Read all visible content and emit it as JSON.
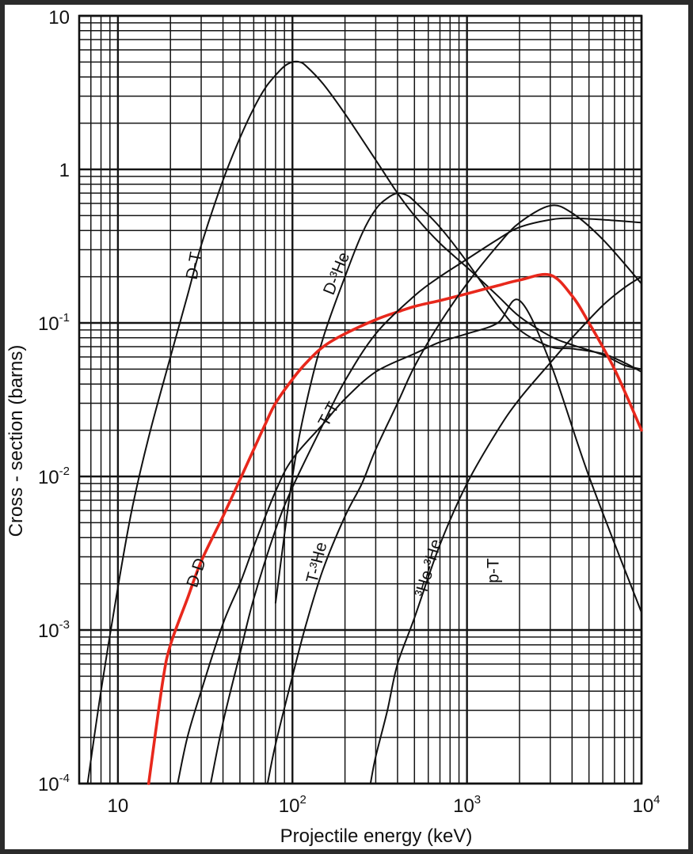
{
  "chart_data": {
    "type": "line",
    "title": "",
    "xlabel": "Projectile energy (keV)",
    "ylabel": "Cross - section (barns)",
    "x_scale": "log",
    "y_scale": "log",
    "xlim": [
      6,
      10000
    ],
    "ylim": [
      0.0001,
      10
    ],
    "grid": true,
    "x_ticks": [
      {
        "value": 10,
        "base": "10",
        "exp": ""
      },
      {
        "value": 100,
        "base": "10",
        "exp": "2"
      },
      {
        "value": 1000,
        "base": "10",
        "exp": "3"
      },
      {
        "value": 10000,
        "base": "10",
        "exp": "4"
      }
    ],
    "y_ticks": [
      {
        "value": 10,
        "base": "10",
        "exp": ""
      },
      {
        "value": 1,
        "base": "1",
        "exp": ""
      },
      {
        "value": 0.1,
        "base": "10",
        "exp": "-1"
      },
      {
        "value": 0.01,
        "base": "10",
        "exp": "-2"
      },
      {
        "value": 0.001,
        "base": "10",
        "exp": "-3"
      },
      {
        "value": 0.0001,
        "base": "10",
        "exp": "-4"
      }
    ],
    "series": [
      {
        "name": "D-T",
        "color": "#111111",
        "highlight": false,
        "x": [
          6.7,
          8,
          10,
          12,
          15,
          20,
          25,
          30,
          40,
          50,
          60,
          70,
          80,
          90,
          100,
          110,
          120,
          150,
          200,
          300,
          400,
          500,
          700,
          1000,
          1500,
          2000,
          3000,
          4000,
          6000,
          8000,
          10000
        ],
        "y": [
          0.0001,
          0.0004,
          0.0019,
          0.006,
          0.018,
          0.06,
          0.15,
          0.32,
          0.85,
          1.6,
          2.5,
          3.4,
          4.1,
          4.7,
          5.0,
          5.0,
          4.7,
          3.6,
          2.3,
          1.15,
          0.7,
          0.5,
          0.33,
          0.23,
          0.15,
          0.11,
          0.082,
          0.072,
          0.062,
          0.053,
          0.05
        ]
      },
      {
        "name": "D-³He",
        "color": "#111111",
        "highlight": false,
        "x": [
          80,
          100,
          120,
          150,
          200,
          250,
          300,
          350,
          400,
          450,
          500,
          700,
          1000,
          1500,
          2000,
          3000,
          4000,
          6000,
          8000,
          10000
        ],
        "y": [
          0.0015,
          0.01,
          0.03,
          0.08,
          0.2,
          0.38,
          0.55,
          0.65,
          0.7,
          0.68,
          0.62,
          0.42,
          0.25,
          0.13,
          0.09,
          0.07,
          0.068,
          0.063,
          0.055,
          0.048
        ]
      },
      {
        "name": "D-D",
        "color": "#e8281c",
        "highlight": true,
        "x": [
          15,
          18,
          20,
          25,
          30,
          40,
          50,
          60,
          70,
          80,
          100,
          120,
          150,
          200,
          300,
          400,
          500,
          700,
          1000,
          1500,
          2000,
          3000,
          4000,
          5000,
          7000,
          10000
        ],
        "y": [
          0.0001,
          0.00045,
          0.0008,
          0.0016,
          0.0028,
          0.0055,
          0.0095,
          0.015,
          0.022,
          0.03,
          0.043,
          0.055,
          0.07,
          0.085,
          0.105,
          0.118,
          0.128,
          0.14,
          0.155,
          0.175,
          0.19,
          0.205,
          0.15,
          0.1,
          0.05,
          0.02
        ]
      },
      {
        "name": "T-T",
        "color": "#111111",
        "highlight": false,
        "x": [
          22,
          25,
          30,
          40,
          50,
          60,
          80,
          100,
          150,
          200,
          300,
          500,
          700,
          1000,
          1500,
          2000,
          3000,
          5000,
          10000
        ],
        "y": [
          0.0001,
          0.0002,
          0.0004,
          0.0011,
          0.002,
          0.0035,
          0.008,
          0.013,
          0.022,
          0.032,
          0.048,
          0.063,
          0.075,
          0.085,
          0.1,
          0.14,
          0.055,
          0.01,
          0.0013
        ]
      },
      {
        "name": "T-³He",
        "color": "#111111",
        "highlight": false,
        "x": [
          34,
          40,
          50,
          60,
          80,
          100,
          150,
          200,
          300,
          500,
          700,
          1000,
          1500,
          2000,
          3000,
          4000,
          6000,
          10000
        ],
        "y": [
          0.0001,
          0.00025,
          0.0007,
          0.0016,
          0.0045,
          0.0085,
          0.022,
          0.042,
          0.085,
          0.15,
          0.2,
          0.26,
          0.35,
          0.42,
          0.47,
          0.48,
          0.47,
          0.45
        ]
      },
      {
        "name": "³He-³He",
        "color": "#111111",
        "highlight": false,
        "x": [
          72,
          80,
          100,
          120,
          150,
          200,
          250,
          300,
          400,
          500,
          700,
          1000,
          1500,
          2000,
          3000,
          4000,
          6000,
          10000
        ],
        "y": [
          0.0001,
          0.00018,
          0.0005,
          0.0011,
          0.0025,
          0.0055,
          0.009,
          0.015,
          0.03,
          0.052,
          0.1,
          0.18,
          0.32,
          0.45,
          0.58,
          0.52,
          0.35,
          0.18
        ]
      },
      {
        "name": "p-T",
        "color": "#111111",
        "highlight": false,
        "x": [
          280,
          300,
          350,
          400,
          500,
          700,
          1000,
          1500,
          2000,
          3000,
          4000,
          6000,
          8000,
          10000
        ],
        "y": [
          0.0001,
          0.00015,
          0.0003,
          0.0006,
          0.0012,
          0.0036,
          0.009,
          0.02,
          0.032,
          0.055,
          0.08,
          0.13,
          0.17,
          0.2
        ]
      }
    ],
    "curve_labels": [
      {
        "series": "D-T",
        "text": "D-T"
      },
      {
        "series": "D-³He",
        "text": "D-³He"
      },
      {
        "series": "D-D",
        "text": "D-D"
      },
      {
        "series": "T-T",
        "text": "T-T"
      },
      {
        "series": "T-³He",
        "text": "T-³He"
      },
      {
        "series": "³He-³He",
        "text": "³He-³He"
      },
      {
        "series": "p-T",
        "text": "p-T"
      }
    ]
  }
}
